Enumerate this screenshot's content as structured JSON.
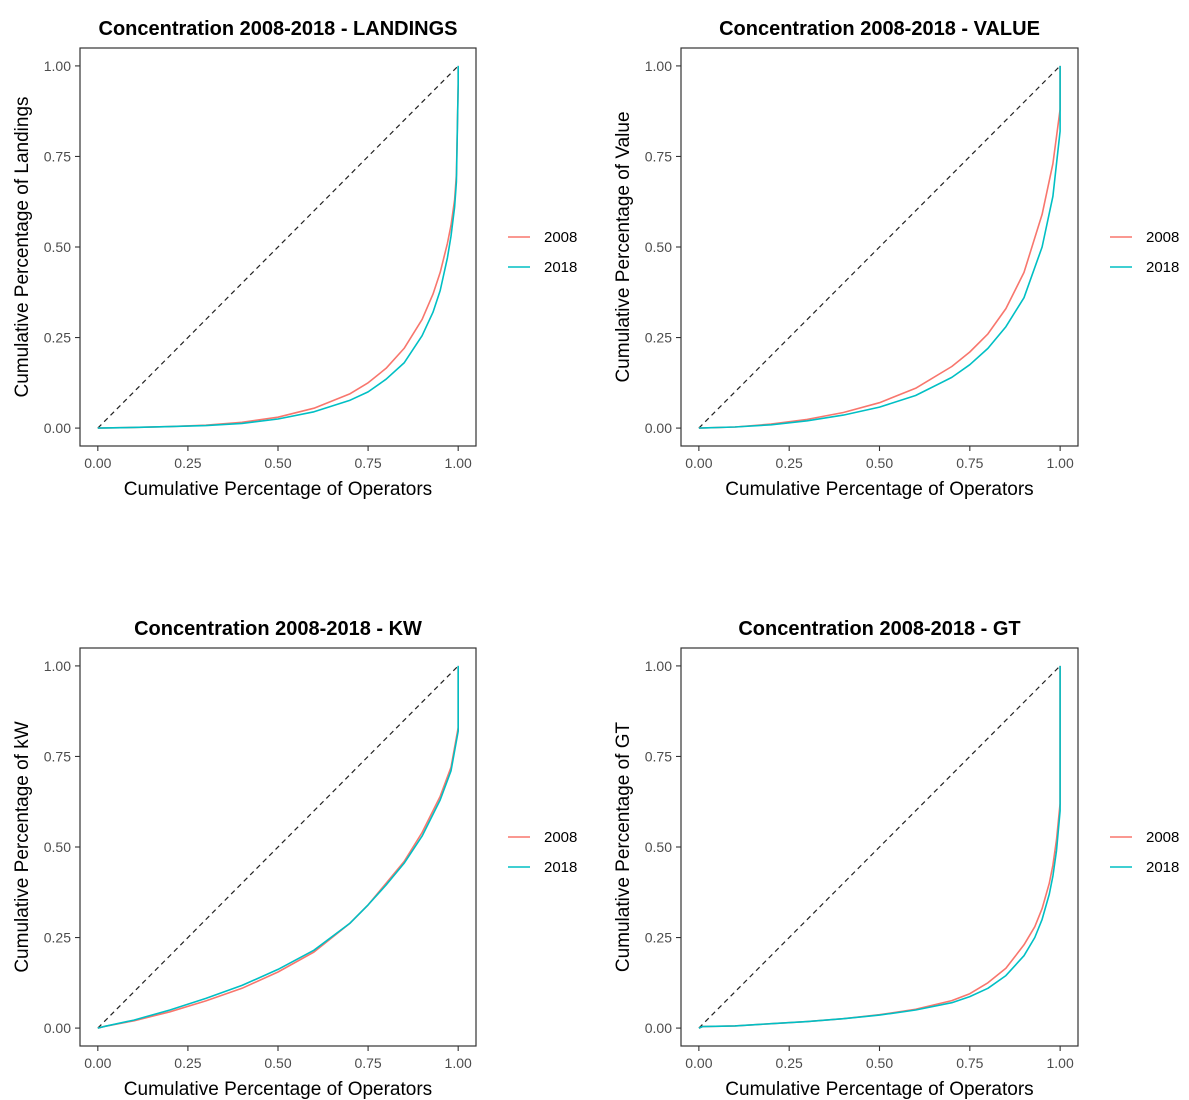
{
  "figure": {
    "series_colors": {
      "2008": "#F8766D",
      "2018": "#00BFC4"
    }
  },
  "chart_data": [
    {
      "type": "line",
      "title": "Concentration 2008-2018 - LANDINGS",
      "xlabel": "Cumulative Percentage of Operators",
      "ylabel": "Cumulative Percentage of Landings",
      "xlim": [
        0,
        1
      ],
      "ylim": [
        0,
        1
      ],
      "xticks": [
        "0.00",
        "0.25",
        "0.50",
        "0.75",
        "1.00"
      ],
      "yticks": [
        "0.00",
        "0.25",
        "0.50",
        "0.75",
        "1.00"
      ],
      "grid": false,
      "legend": "right",
      "reference_line": {
        "style": "dashed",
        "from": [
          0,
          0
        ],
        "to": [
          1,
          1
        ]
      },
      "series": [
        {
          "name": "2008",
          "color": "#F8766D",
          "x": [
            0,
            0.1,
            0.2,
            0.3,
            0.4,
            0.5,
            0.6,
            0.7,
            0.75,
            0.8,
            0.85,
            0.9,
            0.93,
            0.95,
            0.97,
            0.98,
            0.99,
            0.995,
            1.0,
            1.0
          ],
          "y": [
            0,
            0.002,
            0.004,
            0.008,
            0.016,
            0.03,
            0.055,
            0.095,
            0.125,
            0.165,
            0.22,
            0.3,
            0.37,
            0.43,
            0.51,
            0.56,
            0.63,
            0.7,
            0.95,
            1.0
          ]
        },
        {
          "name": "2018",
          "color": "#00BFC4",
          "x": [
            0,
            0.1,
            0.2,
            0.3,
            0.4,
            0.5,
            0.6,
            0.7,
            0.75,
            0.8,
            0.85,
            0.9,
            0.93,
            0.95,
            0.97,
            0.98,
            0.99,
            0.995,
            1.0,
            1.0
          ],
          "y": [
            0,
            0.002,
            0.004,
            0.007,
            0.013,
            0.025,
            0.045,
            0.077,
            0.1,
            0.135,
            0.18,
            0.255,
            0.32,
            0.38,
            0.47,
            0.53,
            0.61,
            0.68,
            0.95,
            1.0
          ]
        }
      ]
    },
    {
      "type": "line",
      "title": "Concentration 2008-2018 - VALUE",
      "xlabel": "Cumulative Percentage of Operators",
      "ylabel": "Cumulative Percentage of Value",
      "xlim": [
        0,
        1
      ],
      "ylim": [
        0,
        1
      ],
      "xticks": [
        "0.00",
        "0.25",
        "0.50",
        "0.75",
        "1.00"
      ],
      "yticks": [
        "0.00",
        "0.25",
        "0.50",
        "0.75",
        "1.00"
      ],
      "grid": false,
      "legend": "right",
      "reference_line": {
        "style": "dashed",
        "from": [
          0,
          0
        ],
        "to": [
          1,
          1
        ]
      },
      "series": [
        {
          "name": "2008",
          "color": "#F8766D",
          "x": [
            0,
            0.1,
            0.2,
            0.3,
            0.4,
            0.5,
            0.6,
            0.7,
            0.75,
            0.8,
            0.85,
            0.9,
            0.95,
            0.98,
            1.0,
            1.0
          ],
          "y": [
            0,
            0.003,
            0.011,
            0.024,
            0.043,
            0.07,
            0.11,
            0.17,
            0.21,
            0.26,
            0.33,
            0.43,
            0.59,
            0.73,
            0.88,
            1.0
          ]
        },
        {
          "name": "2018",
          "color": "#00BFC4",
          "x": [
            0,
            0.1,
            0.2,
            0.3,
            0.4,
            0.5,
            0.6,
            0.7,
            0.75,
            0.8,
            0.85,
            0.9,
            0.95,
            0.98,
            1.0,
            1.0
          ],
          "y": [
            0,
            0.003,
            0.009,
            0.02,
            0.036,
            0.058,
            0.09,
            0.14,
            0.175,
            0.22,
            0.28,
            0.36,
            0.5,
            0.64,
            0.82,
            1.0
          ]
        }
      ]
    },
    {
      "type": "line",
      "title": "Concentration 2008-2018 - KW",
      "xlabel": "Cumulative Percentage of Operators",
      "ylabel": "Cumulative Percentage of kW",
      "xlim": [
        0,
        1
      ],
      "ylim": [
        0,
        1
      ],
      "xticks": [
        "0.00",
        "0.25",
        "0.50",
        "0.75",
        "1.00"
      ],
      "yticks": [
        "0.00",
        "0.25",
        "0.50",
        "0.75",
        "1.00"
      ],
      "grid": false,
      "legend": "right",
      "reference_line": {
        "style": "dashed",
        "from": [
          0,
          0
        ],
        "to": [
          1,
          1
        ]
      },
      "series": [
        {
          "name": "2008",
          "color": "#F8766D",
          "x": [
            0,
            0.02,
            0.1,
            0.2,
            0.3,
            0.4,
            0.5,
            0.6,
            0.7,
            0.75,
            0.8,
            0.85,
            0.9,
            0.95,
            0.98,
            1.0,
            1.0
          ],
          "y": [
            0,
            0.005,
            0.02,
            0.045,
            0.075,
            0.11,
            0.155,
            0.21,
            0.29,
            0.34,
            0.4,
            0.46,
            0.54,
            0.64,
            0.72,
            0.83,
            1.0
          ]
        },
        {
          "name": "2018",
          "color": "#00BFC4",
          "x": [
            0,
            0.02,
            0.1,
            0.2,
            0.3,
            0.4,
            0.5,
            0.6,
            0.7,
            0.75,
            0.8,
            0.85,
            0.9,
            0.95,
            0.98,
            1.0,
            1.0
          ],
          "y": [
            0,
            0.005,
            0.022,
            0.05,
            0.082,
            0.118,
            0.162,
            0.215,
            0.29,
            0.34,
            0.395,
            0.455,
            0.53,
            0.63,
            0.71,
            0.82,
            1.0
          ]
        }
      ]
    },
    {
      "type": "line",
      "title": "Concentration 2008-2018 - GT",
      "xlabel": "Cumulative Percentage of Operators",
      "ylabel": "Cumulative Percentage of GT",
      "xlim": [
        0,
        1
      ],
      "ylim": [
        0,
        1
      ],
      "xticks": [
        "0.00",
        "0.25",
        "0.50",
        "0.75",
        "1.00"
      ],
      "yticks": [
        "0.00",
        "0.25",
        "0.50",
        "0.75",
        "1.00"
      ],
      "grid": false,
      "legend": "right",
      "reference_line": {
        "style": "dashed",
        "from": [
          0,
          0
        ],
        "to": [
          1,
          1
        ]
      },
      "series": [
        {
          "name": "2008",
          "color": "#F8766D",
          "x": [
            0,
            0.01,
            0.1,
            0.2,
            0.3,
            0.4,
            0.5,
            0.6,
            0.7,
            0.75,
            0.8,
            0.85,
            0.9,
            0.93,
            0.95,
            0.97,
            0.98,
            0.99,
            1.0,
            1.0
          ],
          "y": [
            0,
            0.004,
            0.006,
            0.012,
            0.018,
            0.026,
            0.037,
            0.052,
            0.076,
            0.095,
            0.125,
            0.165,
            0.23,
            0.28,
            0.33,
            0.4,
            0.45,
            0.52,
            0.62,
            1.0
          ]
        },
        {
          "name": "2018",
          "color": "#00BFC4",
          "x": [
            0,
            0.01,
            0.1,
            0.2,
            0.3,
            0.4,
            0.5,
            0.6,
            0.7,
            0.75,
            0.8,
            0.85,
            0.9,
            0.93,
            0.95,
            0.97,
            0.98,
            0.99,
            1.0,
            1.0
          ],
          "y": [
            0,
            0.004,
            0.006,
            0.012,
            0.018,
            0.026,
            0.036,
            0.05,
            0.07,
            0.087,
            0.11,
            0.145,
            0.2,
            0.25,
            0.3,
            0.37,
            0.42,
            0.49,
            0.6,
            1.0
          ]
        }
      ]
    }
  ]
}
